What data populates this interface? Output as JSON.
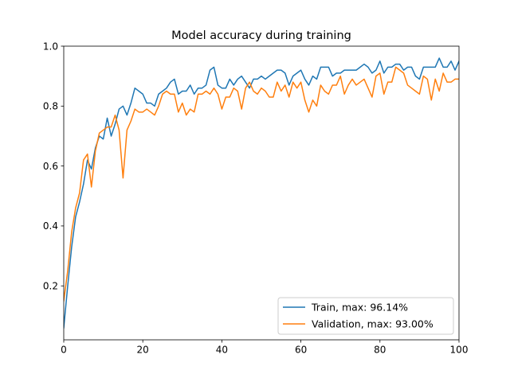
{
  "chart_data": {
    "type": "line",
    "title": "Model accuracy during training",
    "xlabel": "",
    "ylabel": "",
    "xlim": [
      0,
      100
    ],
    "ylim": [
      0.02,
      1.0
    ],
    "xticks": [
      0,
      20,
      40,
      60,
      80,
      100
    ],
    "yticks": [
      0.2,
      0.4,
      0.6,
      0.8,
      1.0
    ],
    "ytick_labels": [
      "0.2",
      "0.4",
      "0.6",
      "0.8",
      "1.0"
    ],
    "grid": false,
    "legend_position": "lower-right",
    "series": [
      {
        "name": "Train, max: 96.14%",
        "color": "#1f77b4",
        "x": [
          0,
          1,
          2,
          3,
          4,
          5,
          6,
          7,
          8,
          9,
          10,
          11,
          12,
          13,
          14,
          15,
          16,
          17,
          18,
          19,
          20,
          21,
          22,
          23,
          24,
          25,
          26,
          27,
          28,
          29,
          30,
          31,
          32,
          33,
          34,
          35,
          36,
          37,
          38,
          39,
          40,
          41,
          42,
          43,
          44,
          45,
          46,
          47,
          48,
          49,
          50,
          51,
          52,
          53,
          54,
          55,
          56,
          57,
          58,
          59,
          60,
          61,
          62,
          63,
          64,
          65,
          66,
          67,
          68,
          69,
          70,
          71,
          72,
          73,
          74,
          75,
          76,
          77,
          78,
          79,
          80,
          81,
          82,
          83,
          84,
          85,
          86,
          87,
          88,
          89,
          90,
          91,
          92,
          93,
          94,
          95,
          96,
          97,
          98,
          99,
          100
        ],
        "values": [
          0.06,
          0.2,
          0.33,
          0.43,
          0.48,
          0.54,
          0.62,
          0.59,
          0.66,
          0.7,
          0.69,
          0.76,
          0.7,
          0.74,
          0.79,
          0.8,
          0.77,
          0.81,
          0.86,
          0.85,
          0.84,
          0.81,
          0.81,
          0.8,
          0.84,
          0.85,
          0.86,
          0.88,
          0.89,
          0.84,
          0.85,
          0.85,
          0.87,
          0.84,
          0.86,
          0.86,
          0.87,
          0.92,
          0.93,
          0.87,
          0.86,
          0.86,
          0.89,
          0.87,
          0.89,
          0.9,
          0.88,
          0.86,
          0.89,
          0.89,
          0.9,
          0.89,
          0.9,
          0.91,
          0.92,
          0.92,
          0.91,
          0.87,
          0.9,
          0.91,
          0.92,
          0.89,
          0.87,
          0.9,
          0.89,
          0.93,
          0.93,
          0.93,
          0.9,
          0.91,
          0.91,
          0.92,
          0.92,
          0.92,
          0.92,
          0.93,
          0.94,
          0.93,
          0.91,
          0.92,
          0.95,
          0.91,
          0.93,
          0.93,
          0.94,
          0.94,
          0.92,
          0.93,
          0.93,
          0.9,
          0.89,
          0.93,
          0.93,
          0.93,
          0.93,
          0.96,
          0.93,
          0.93,
          0.95,
          0.92,
          0.95
        ]
      },
      {
        "name": "Validation, max: 93.00%",
        "color": "#ff7f0e",
        "x": [
          0,
          1,
          2,
          3,
          4,
          5,
          6,
          7,
          8,
          9,
          10,
          11,
          12,
          13,
          14,
          15,
          16,
          17,
          18,
          19,
          20,
          21,
          22,
          23,
          24,
          25,
          26,
          27,
          28,
          29,
          30,
          31,
          32,
          33,
          34,
          35,
          36,
          37,
          38,
          39,
          40,
          41,
          42,
          43,
          44,
          45,
          46,
          47,
          48,
          49,
          50,
          51,
          52,
          53,
          54,
          55,
          56,
          57,
          58,
          59,
          60,
          61,
          62,
          63,
          64,
          65,
          66,
          67,
          68,
          69,
          70,
          71,
          72,
          73,
          74,
          75,
          76,
          77,
          78,
          79,
          80,
          81,
          82,
          83,
          84,
          85,
          86,
          87,
          88,
          89,
          90,
          91,
          92,
          93,
          94,
          95,
          96,
          97,
          98,
          99,
          100
        ],
        "values": [
          0.15,
          0.25,
          0.38,
          0.46,
          0.51,
          0.62,
          0.64,
          0.53,
          0.65,
          0.71,
          0.72,
          0.73,
          0.73,
          0.77,
          0.72,
          0.56,
          0.72,
          0.75,
          0.79,
          0.78,
          0.78,
          0.79,
          0.78,
          0.77,
          0.8,
          0.84,
          0.85,
          0.84,
          0.84,
          0.78,
          0.81,
          0.77,
          0.79,
          0.78,
          0.84,
          0.84,
          0.85,
          0.84,
          0.86,
          0.84,
          0.79,
          0.83,
          0.83,
          0.86,
          0.85,
          0.79,
          0.86,
          0.88,
          0.85,
          0.84,
          0.86,
          0.85,
          0.83,
          0.83,
          0.88,
          0.85,
          0.87,
          0.83,
          0.88,
          0.86,
          0.88,
          0.82,
          0.78,
          0.82,
          0.8,
          0.87,
          0.85,
          0.84,
          0.87,
          0.87,
          0.9,
          0.84,
          0.87,
          0.89,
          0.87,
          0.88,
          0.89,
          0.86,
          0.83,
          0.9,
          0.91,
          0.84,
          0.88,
          0.88,
          0.93,
          0.92,
          0.91,
          0.87,
          0.86,
          0.85,
          0.84,
          0.9,
          0.89,
          0.82,
          0.89,
          0.85,
          0.91,
          0.88,
          0.88,
          0.89,
          0.89
        ]
      }
    ]
  }
}
